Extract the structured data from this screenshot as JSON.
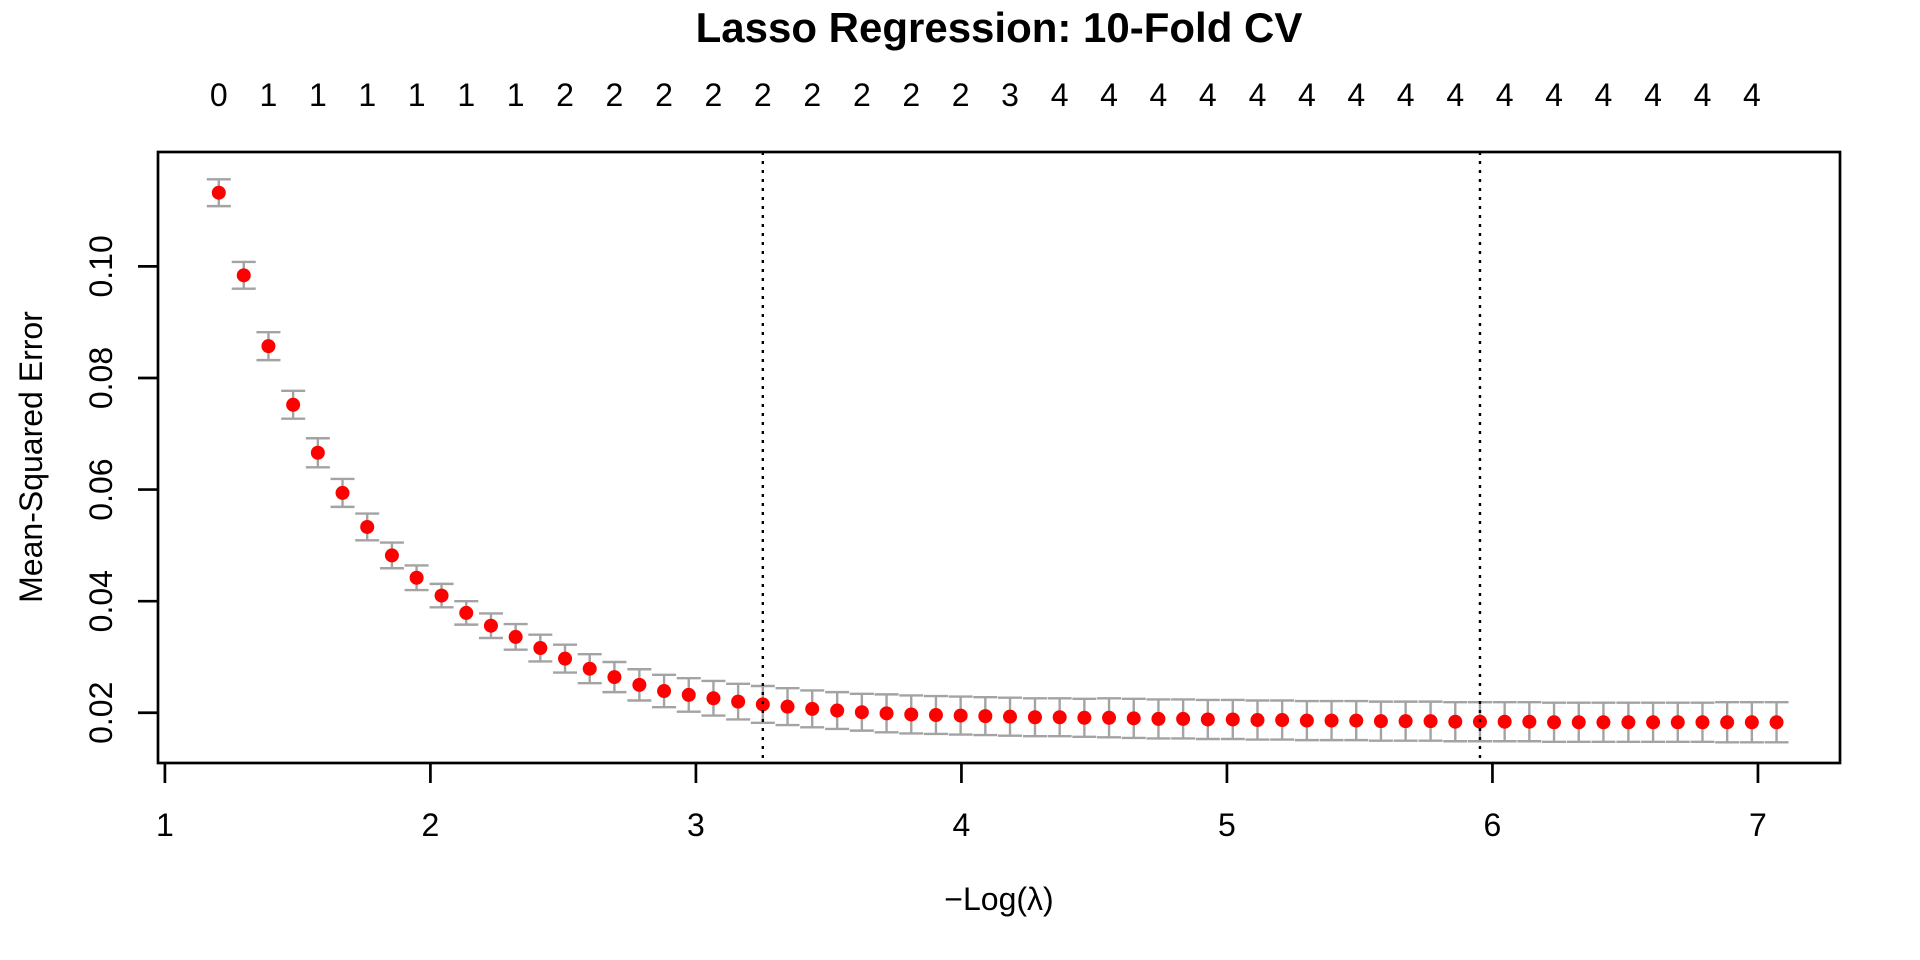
{
  "title": "Lasso Regression: 10-Fold CV",
  "chart_data": {
    "type": "scatter",
    "title": "Lasso Regression: 10-Fold CV",
    "xlabel": "−Log(λ)",
    "ylabel": "Mean-Squared Error",
    "xlim": [
      0.974,
      7.309
    ],
    "ylim": [
      0.011,
      0.1205
    ],
    "grid": false,
    "x_ticks": [
      "1",
      "2",
      "3",
      "4",
      "5",
      "6",
      "7"
    ],
    "y_ticks": [
      "0.02",
      "0.04",
      "0.06",
      "0.08",
      "0.10"
    ],
    "top_labels": [
      "0",
      "1",
      "1",
      "1",
      "1",
      "1",
      "1",
      "2",
      "2",
      "2",
      "2",
      "2",
      "2",
      "2",
      "2",
      "2",
      "3",
      "4",
      "4",
      "4",
      "4",
      "4",
      "4",
      "4",
      "4",
      "4",
      "4",
      "4",
      "4",
      "4",
      "4",
      "4"
    ],
    "points": {
      "x": [
        1.203,
        1.297,
        1.39,
        1.483,
        1.576,
        1.669,
        1.762,
        1.855,
        1.948,
        2.042,
        2.135,
        2.228,
        2.321,
        2.414,
        2.507,
        2.6,
        2.693,
        2.787,
        2.88,
        2.973,
        3.066,
        3.159,
        3.252,
        3.345,
        3.438,
        3.532,
        3.625,
        3.718,
        3.811,
        3.904,
        3.997,
        4.09,
        4.183,
        4.277,
        4.37,
        4.463,
        4.556,
        4.649,
        4.742,
        4.835,
        4.928,
        5.022,
        5.115,
        5.208,
        5.301,
        5.394,
        5.487,
        5.58,
        5.673,
        5.767,
        5.86,
        5.953,
        6.046,
        6.139,
        6.232,
        6.325,
        6.418,
        6.512,
        6.605,
        6.698,
        6.791,
        6.884,
        6.977,
        7.07
      ],
      "mse": [
        0.1132,
        0.0984,
        0.0857,
        0.0752,
        0.0666,
        0.0594,
        0.0533,
        0.0482,
        0.0442,
        0.041,
        0.0379,
        0.0356,
        0.0336,
        0.0316,
        0.0297,
        0.0279,
        0.0264,
        0.025,
        0.0239,
        0.0232,
        0.0226,
        0.022,
        0.0215,
        0.0211,
        0.0207,
        0.0204,
        0.0201,
        0.0199,
        0.0197,
        0.0196,
        0.0195,
        0.0194,
        0.0193,
        0.0192,
        0.0192,
        0.0191,
        0.0191,
        0.019,
        0.0189,
        0.0189,
        0.0188,
        0.0188,
        0.0187,
        0.0187,
        0.0186,
        0.0186,
        0.0186,
        0.0185,
        0.0185,
        0.0185,
        0.0184,
        0.0184,
        0.0184,
        0.0184,
        0.0183,
        0.0183,
        0.0183,
        0.0183,
        0.0183,
        0.0183,
        0.0183,
        0.0183,
        0.0183,
        0.0183
      ],
      "se": [
        0.0024,
        0.0024,
        0.0025,
        0.0025,
        0.0026,
        0.0025,
        0.0024,
        0.0023,
        0.0022,
        0.0021,
        0.0021,
        0.0022,
        0.0023,
        0.0024,
        0.0025,
        0.0026,
        0.0027,
        0.0028,
        0.0029,
        0.003,
        0.0031,
        0.0032,
        0.0033,
        0.0033,
        0.0033,
        0.0033,
        0.0033,
        0.0034,
        0.0034,
        0.0034,
        0.0034,
        0.0034,
        0.0034,
        0.0034,
        0.0034,
        0.0034,
        0.0035,
        0.0035,
        0.0035,
        0.0035,
        0.0035,
        0.0035,
        0.0035,
        0.0035,
        0.0035,
        0.0035,
        0.0035,
        0.0035,
        0.0035,
        0.0035,
        0.0035,
        0.0035,
        0.0035,
        0.0035,
        0.0035,
        0.0035,
        0.0035,
        0.0035,
        0.0035,
        0.0035,
        0.0035,
        0.0036,
        0.0036,
        0.0036
      ]
    },
    "vlines": [
      3.252,
      5.953
    ],
    "colors": {
      "point": "#fd0000",
      "errorbar": "#a3a3a3",
      "vline": "#000000",
      "text": "#000000",
      "background": "#ffffff"
    }
  }
}
